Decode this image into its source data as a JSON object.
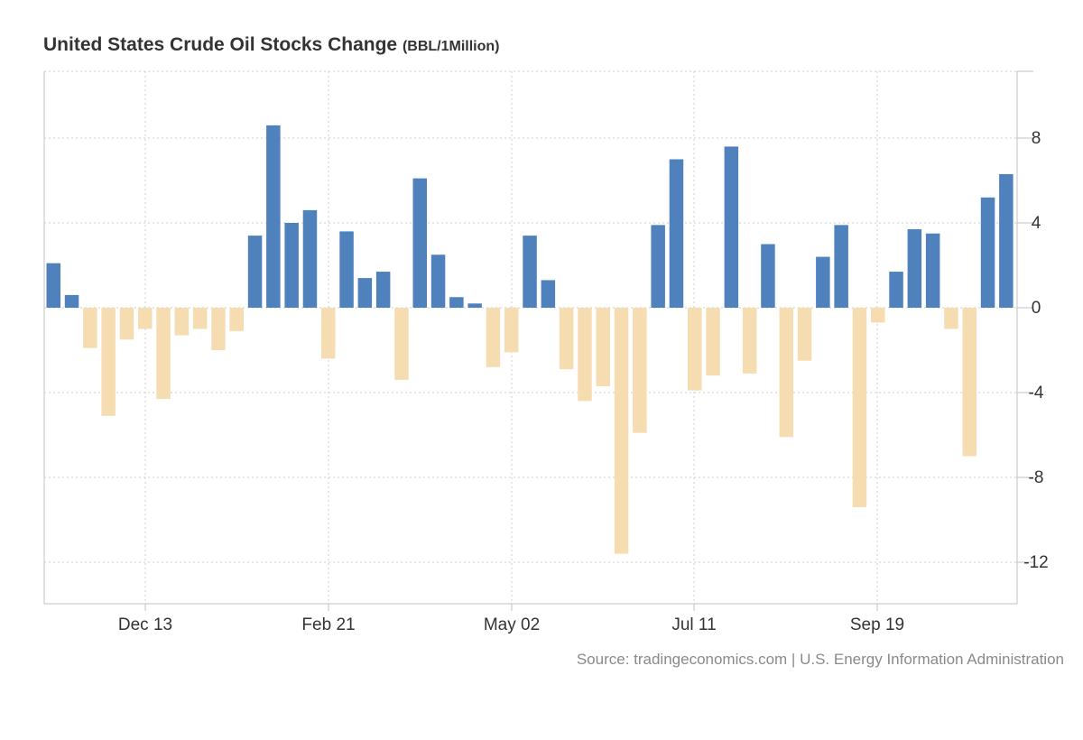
{
  "title": "United States Crude Oil Stocks Change",
  "unit": "(BBL/1Million)",
  "source": "Source: tradingeconomics.com | U.S. Energy Information Administration",
  "colors": {
    "positive": "#4f81bd",
    "negative": "#f6ddb1",
    "grid": "#cccccc",
    "axis": "#c0c0c0"
  },
  "chart_data": {
    "type": "bar",
    "grid": true,
    "yaxis_position": "right",
    "ylim": [
      -14,
      11
    ],
    "yticks": [
      8,
      4,
      0,
      -4,
      -8,
      -12
    ],
    "xtick_labels": [
      "Dec 13",
      "Feb 21",
      "May 02",
      "Jul 11",
      "Sep 19"
    ],
    "values": [
      2.1,
      0.6,
      -1.9,
      -5.1,
      -1.5,
      -1.0,
      -4.3,
      -1.3,
      -1.0,
      -2.0,
      -1.1,
      3.4,
      8.6,
      4.0,
      4.6,
      -2.4,
      3.6,
      1.4,
      1.7,
      -3.4,
      6.1,
      2.5,
      0.5,
      0.2,
      -2.8,
      -2.1,
      3.4,
      1.3,
      -2.9,
      -4.4,
      -3.7,
      -11.6,
      -5.9,
      3.9,
      7.0,
      -3.9,
      -3.2,
      7.6,
      -3.1,
      3.0,
      -6.1,
      -2.5,
      2.4,
      3.9,
      -9.4,
      -0.7,
      1.7,
      3.7,
      3.5,
      -1.0,
      -7.0,
      5.2,
      6.3
    ]
  }
}
